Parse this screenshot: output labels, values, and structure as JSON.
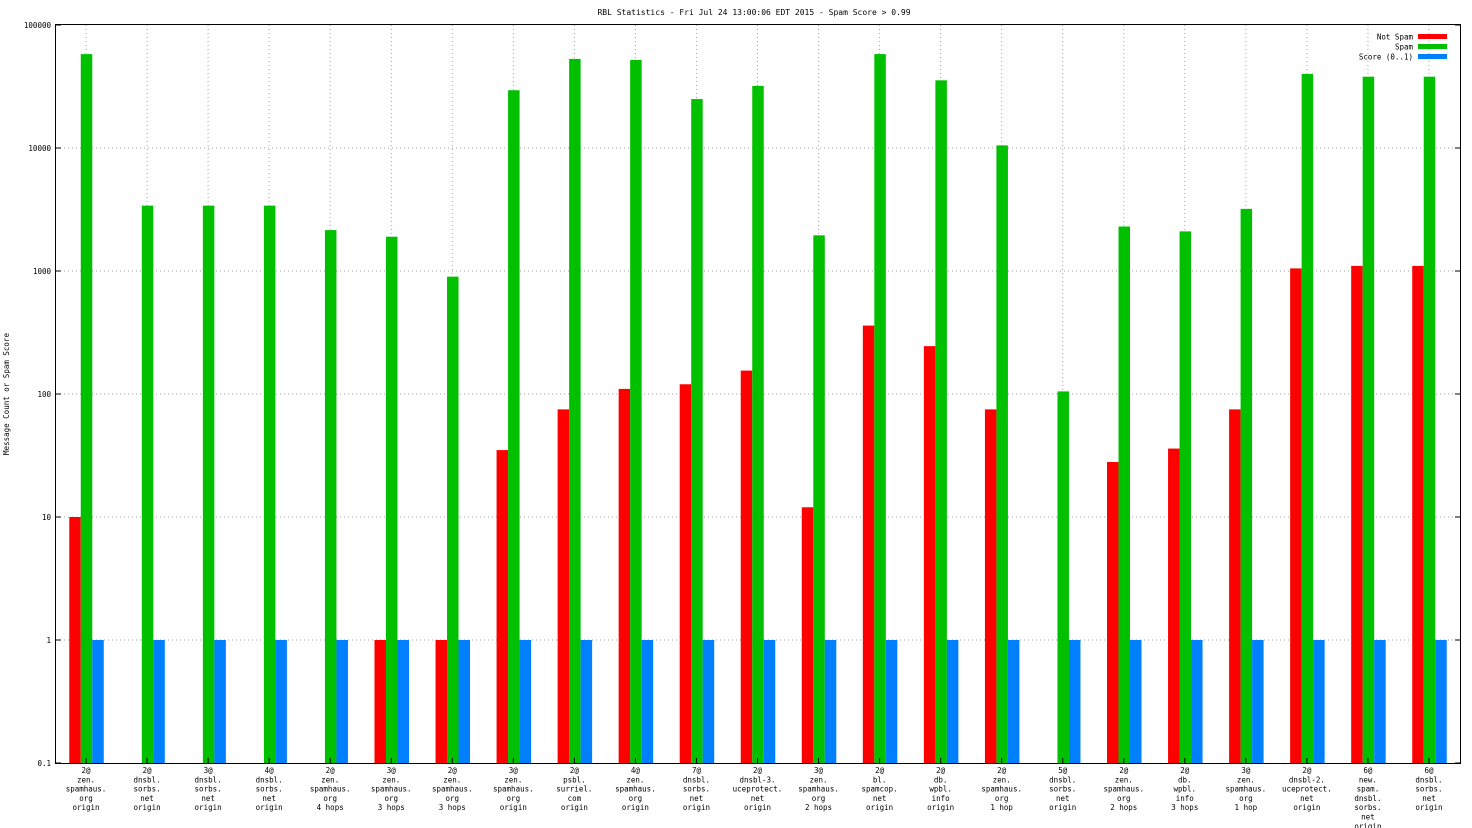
{
  "chart_data": {
    "type": "bar",
    "title": "RBL Statistics - Fri Jul 24 13:00:06 EDT 2015 - Spam Score > 0.99",
    "xlabel": "",
    "ylabel": "Message Count or Spam Score",
    "yscale": "log",
    "ylim": [
      0.1,
      100000
    ],
    "yticks": [
      "0.1",
      "1",
      "10",
      "100",
      "1000",
      "10000",
      "100000"
    ],
    "grid": true,
    "legend_position": "top-right",
    "categories": [
      [
        "2@",
        "zen.",
        "spamhaus.",
        "org",
        "origin"
      ],
      [
        "2@",
        "dnsbl.",
        "sorbs.",
        "net",
        "origin"
      ],
      [
        "3@",
        "dnsbl.",
        "sorbs.",
        "net",
        "origin"
      ],
      [
        "4@",
        "dnsbl.",
        "sorbs.",
        "net",
        "origin"
      ],
      [
        "2@",
        "zen.",
        "spamhaus.",
        "org",
        "4 hops"
      ],
      [
        "3@",
        "zen.",
        "spamhaus.",
        "org",
        "3 hops"
      ],
      [
        "2@",
        "zen.",
        "spamhaus.",
        "org",
        "3 hops"
      ],
      [
        "3@",
        "zen.",
        "spamhaus.",
        "org",
        "origin"
      ],
      [
        "2@",
        "psbl.",
        "surriel.",
        "com",
        "origin"
      ],
      [
        "4@",
        "zen.",
        "spamhaus.",
        "org",
        "origin"
      ],
      [
        "7@",
        "dnsbl.",
        "sorbs.",
        "net",
        "origin"
      ],
      [
        "2@",
        "dnsbl-3.",
        "uceprotect.",
        "net",
        "origin"
      ],
      [
        "3@",
        "zen.",
        "spamhaus.",
        "org",
        "2 hops"
      ],
      [
        "2@",
        "bl.",
        "spamcop.",
        "net",
        "origin"
      ],
      [
        "2@",
        "db.",
        "wpbl.",
        "info",
        "origin"
      ],
      [
        "2@",
        "zen.",
        "spamhaus.",
        "org",
        "1 hop"
      ],
      [
        "5@",
        "dnsbl.",
        "sorbs.",
        "net",
        "origin"
      ],
      [
        "2@",
        "zen.",
        "spamhaus.",
        "org",
        "2 hops"
      ],
      [
        "2@",
        "db.",
        "wpbl.",
        "info",
        "3 hops"
      ],
      [
        "3@",
        "zen.",
        "spamhaus.",
        "org",
        "1 hop"
      ],
      [
        "2@",
        "dnsbl-2.",
        "uceprotect.",
        "net",
        "origin"
      ],
      [
        "6@",
        "new.",
        "spam.",
        "dnsbl.",
        "sorbs.",
        "net",
        "origin"
      ],
      [
        "6@",
        "dnsbl.",
        "sorbs.",
        "net",
        "origin"
      ]
    ],
    "series": [
      {
        "name": "Not Spam",
        "color": "#ff0000",
        "values": [
          10,
          0,
          0,
          0,
          0,
          1,
          1,
          35,
          75,
          110,
          120,
          155,
          12,
          360,
          245,
          75,
          0,
          28,
          36,
          75,
          1050,
          1100,
          1100
        ]
      },
      {
        "name": "Spam",
        "color": "#00c000",
        "values": [
          58000,
          3400,
          3400,
          3400,
          2150,
          1900,
          900,
          29500,
          53000,
          52000,
          25000,
          32000,
          1950,
          58000,
          35500,
          10500,
          105,
          2300,
          2100,
          3200,
          40000,
          38000,
          38000
        ]
      },
      {
        "name": "Score (0..1)",
        "color": "#0080ff",
        "values": [
          1,
          1,
          1,
          1,
          1,
          1,
          1,
          1,
          1,
          1,
          1,
          1,
          1,
          1,
          1,
          1,
          1,
          1,
          1,
          1,
          1,
          1,
          1
        ]
      }
    ]
  }
}
